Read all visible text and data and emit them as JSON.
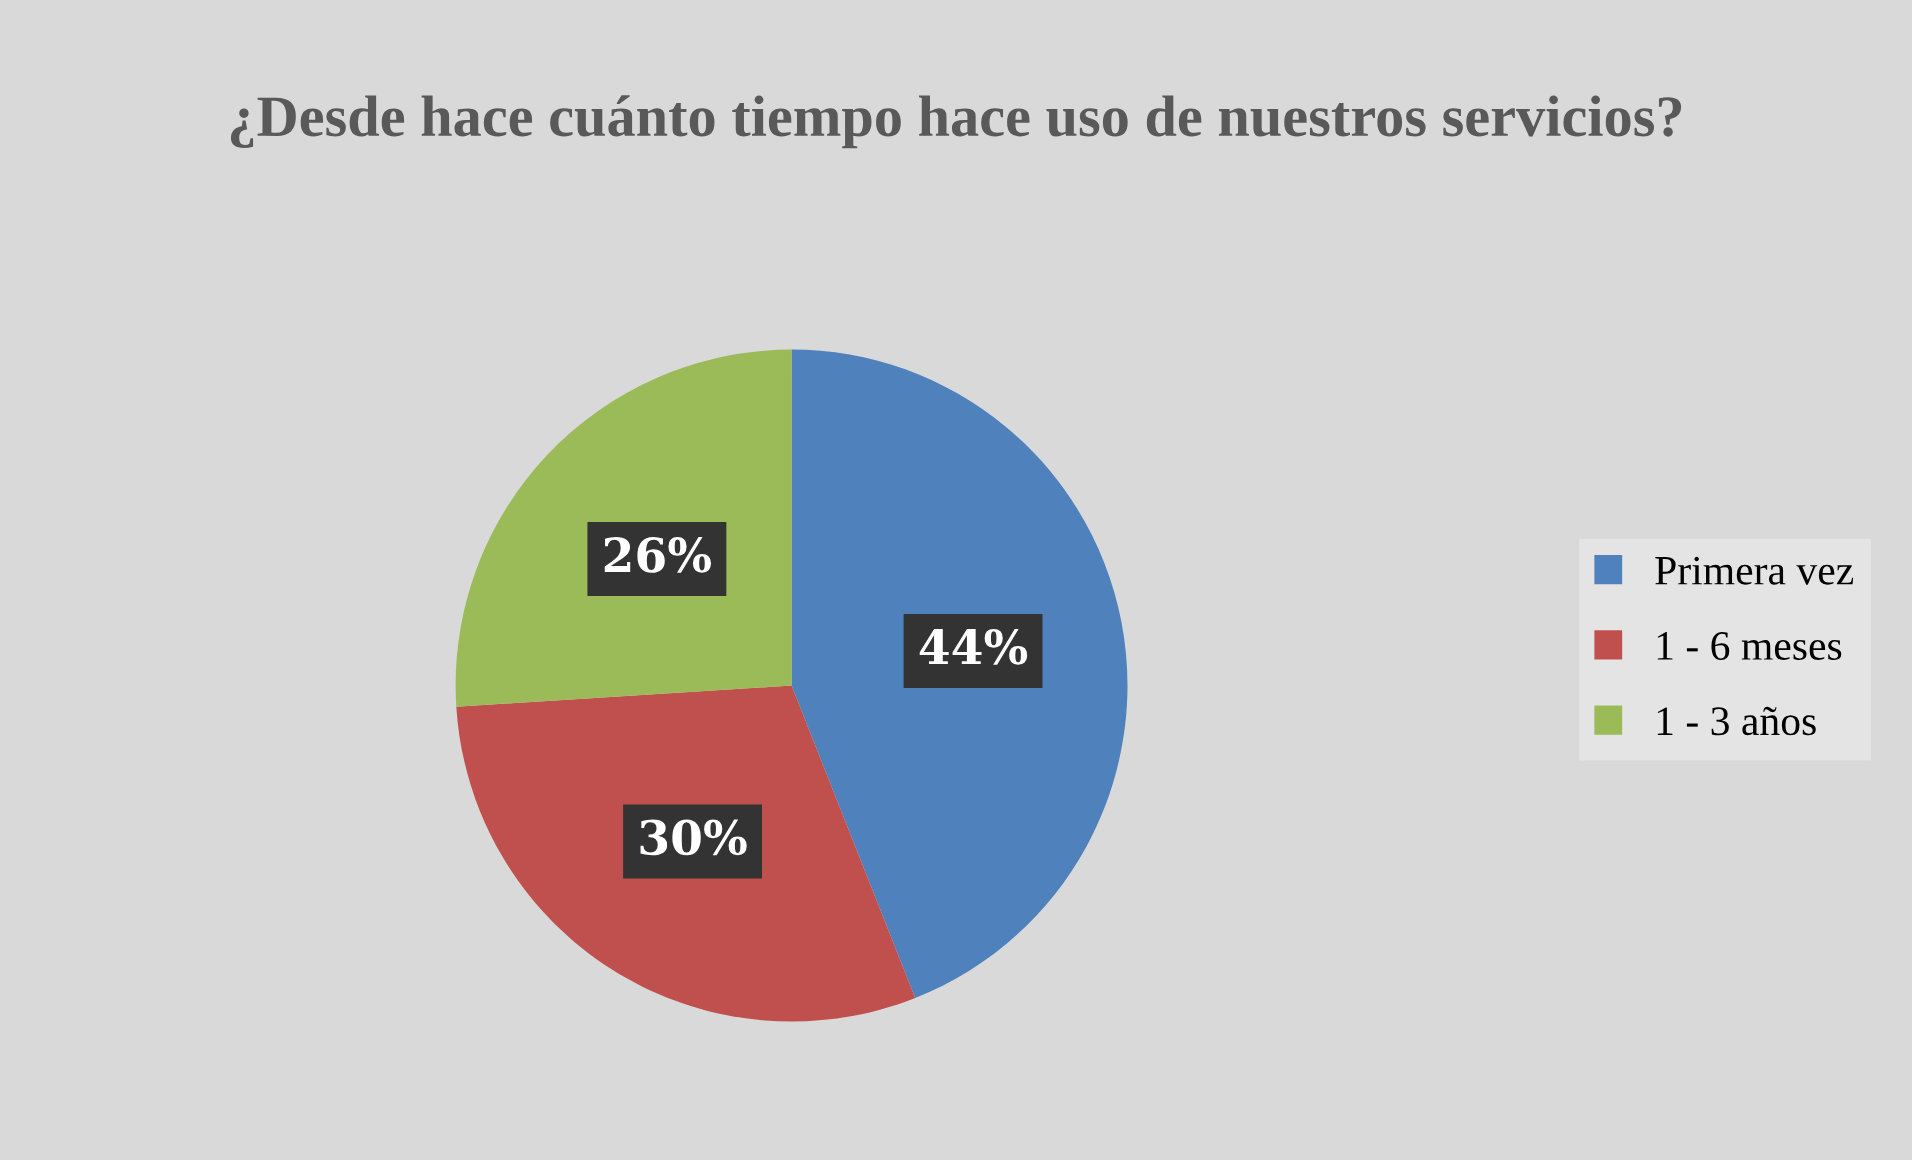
{
  "chart_data": {
    "type": "pie",
    "title": "¿Desde hace cuánto tiempo hace uso de nuestros servicios?",
    "categories": [
      "Primera vez",
      "1 - 6 meses",
      "1 - 3 años"
    ],
    "values": [
      44,
      30,
      26
    ],
    "colors": [
      "#4f81bd",
      "#c0504d",
      "#9bbb59"
    ],
    "value_labels": [
      "44%",
      "30%",
      "26%"
    ],
    "legend": "right"
  }
}
